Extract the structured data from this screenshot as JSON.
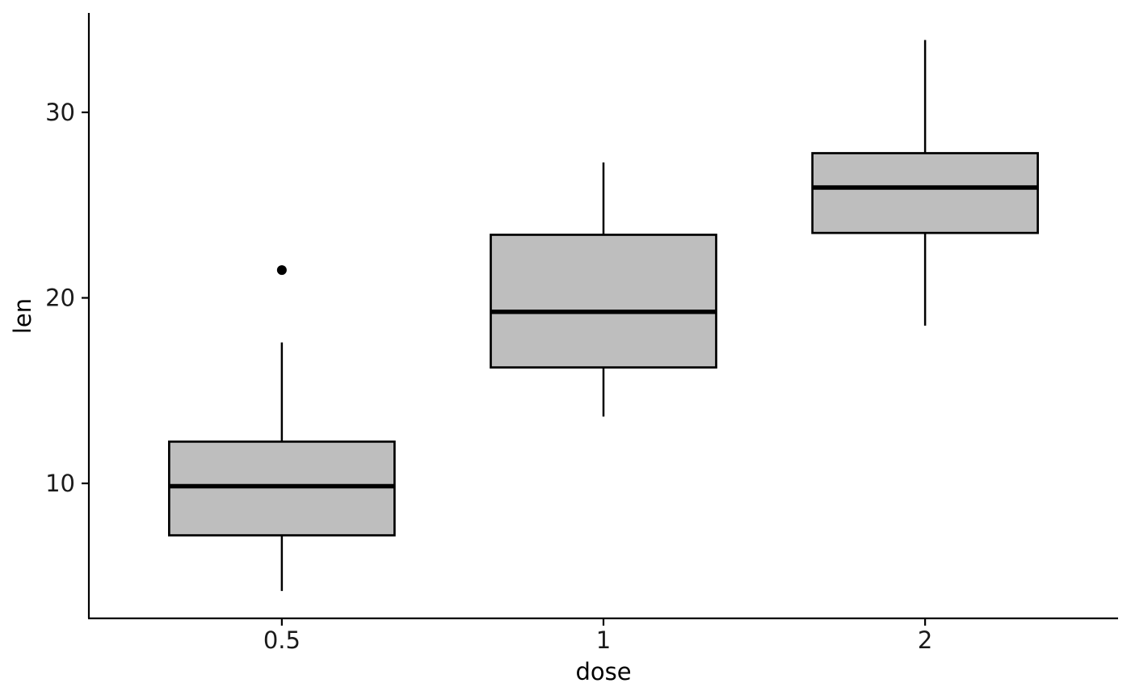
{
  "chart_data": {
    "type": "boxplot",
    "categories": [
      "0.5",
      "1",
      "2"
    ],
    "boxes": [
      {
        "category": "0.5",
        "whisker_low": 4.2,
        "q1": 7.2,
        "median": 9.85,
        "q3": 12.25,
        "whisker_high": 17.6,
        "outliers": [
          21.5
        ]
      },
      {
        "category": "1",
        "whisker_low": 13.6,
        "q1": 16.25,
        "median": 19.25,
        "q3": 23.4,
        "whisker_high": 27.3,
        "outliers": []
      },
      {
        "category": "2",
        "whisker_low": 18.5,
        "q1": 23.5,
        "median": 25.95,
        "q3": 27.8,
        "whisker_high": 33.9,
        "outliers": []
      }
    ],
    "xlabel": "dose",
    "ylabel": "len",
    "yticks": [
      10,
      20,
      30
    ],
    "ylim": [
      2.7,
      35.4
    ],
    "grid": false,
    "legend": "none",
    "colors": {
      "box_fill": "#bebebe",
      "line": "#000000",
      "outlier": "#000000"
    }
  }
}
